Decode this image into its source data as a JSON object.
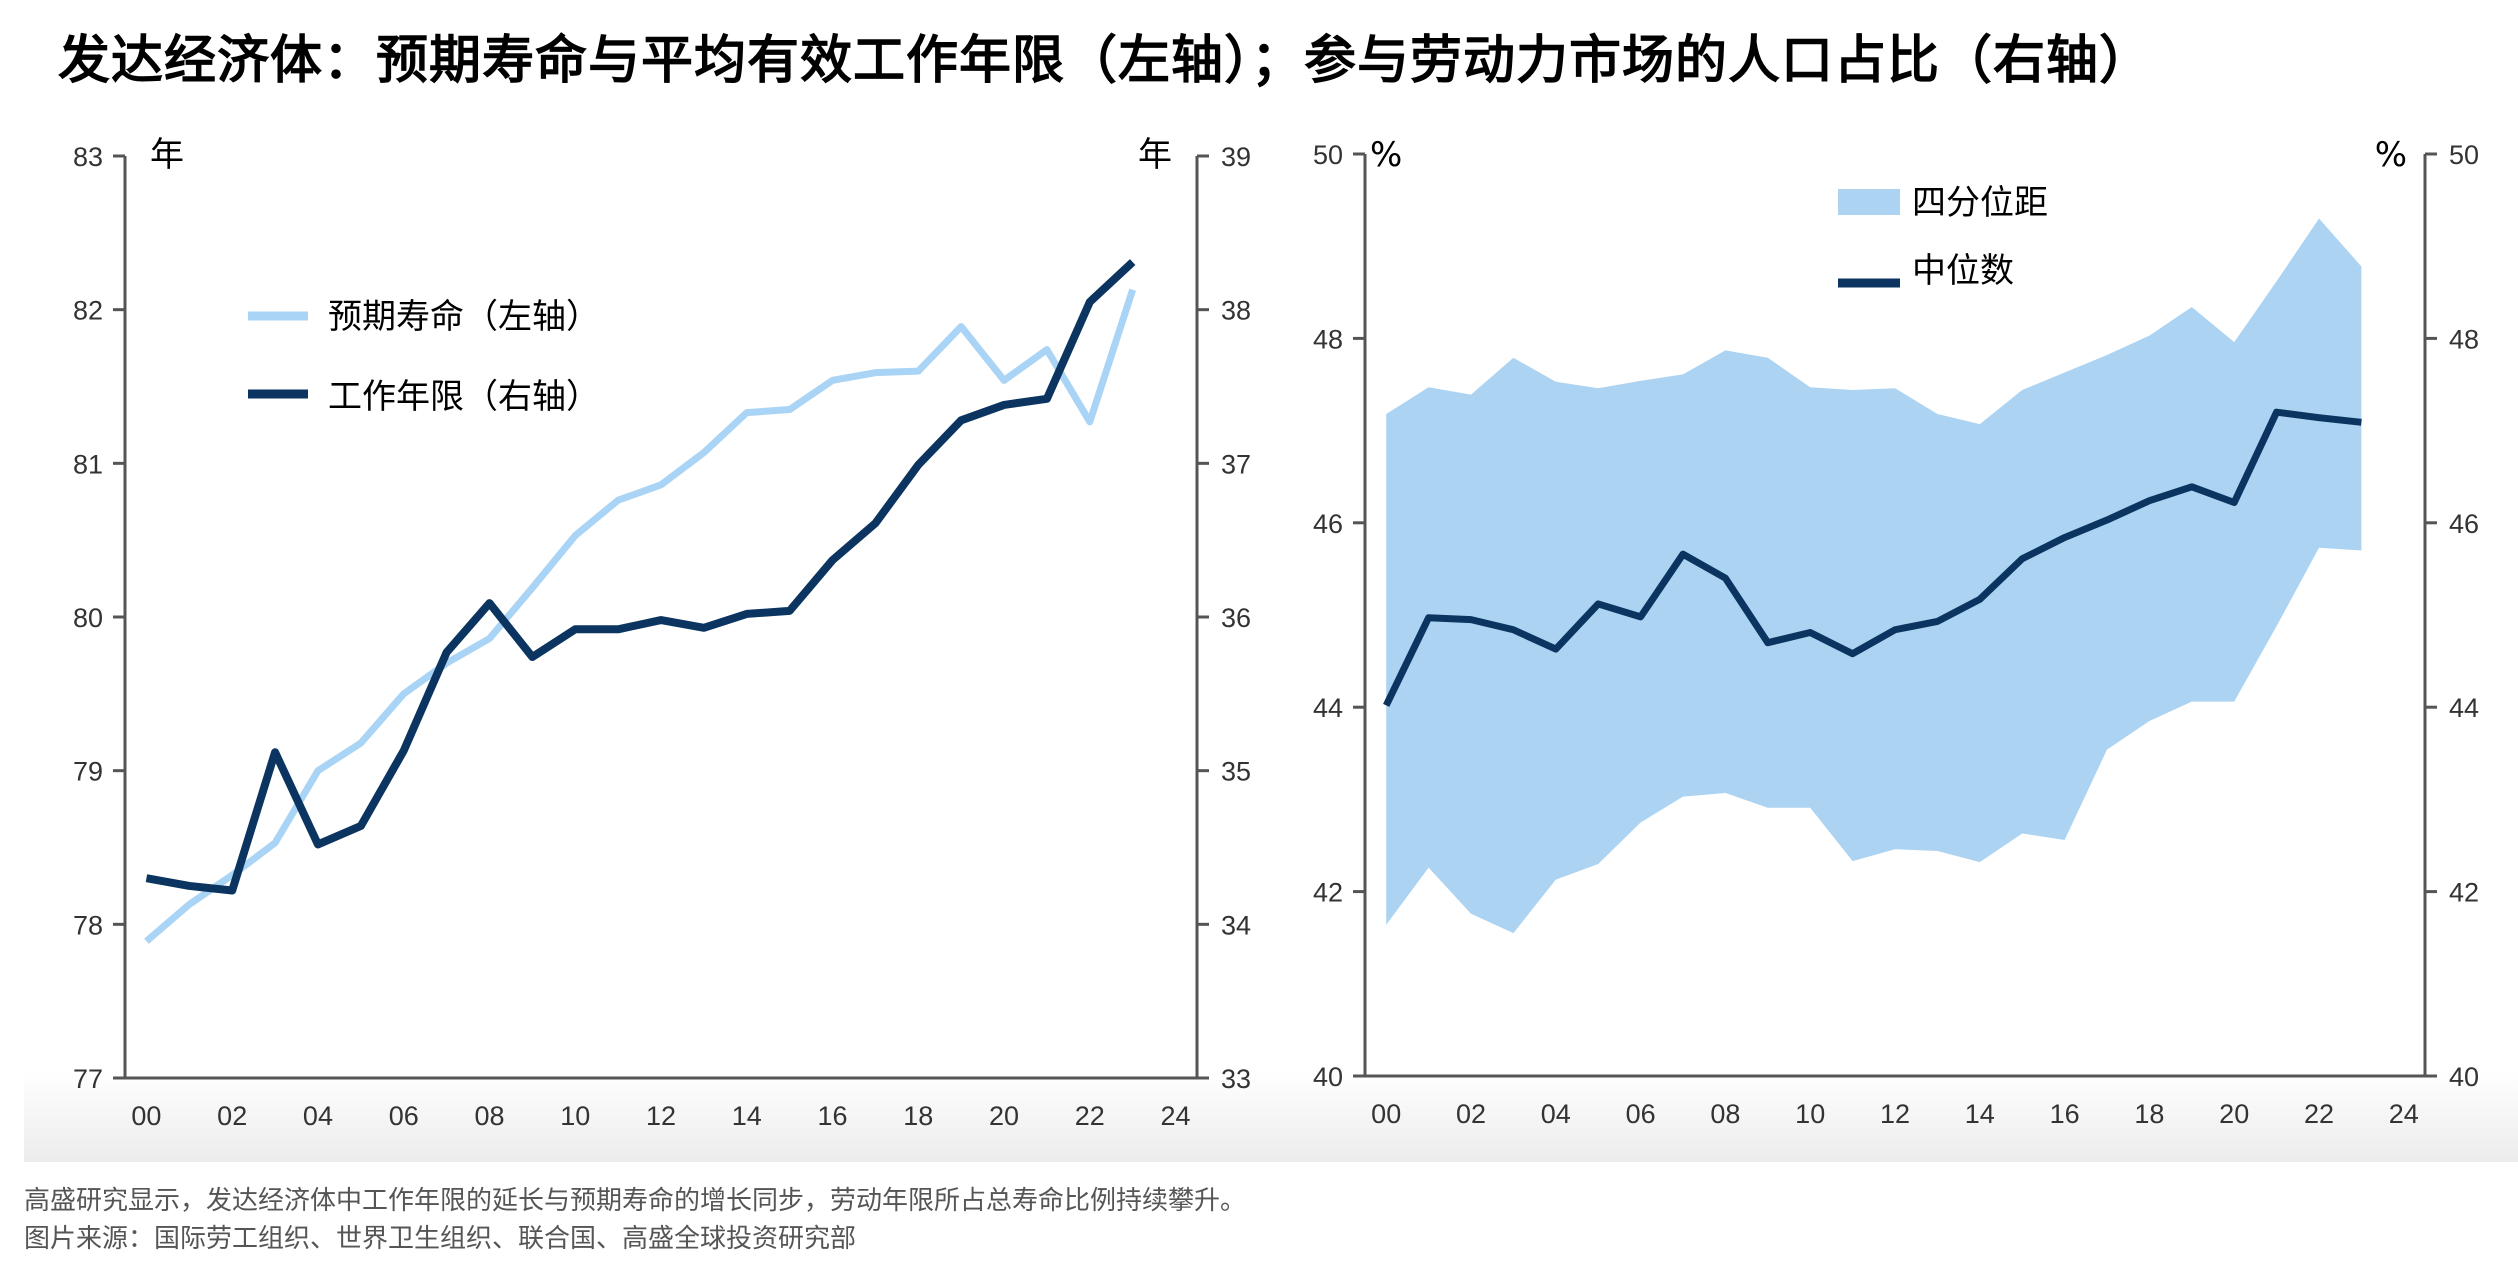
{
  "title": "发达经济体：预期寿命与平均有效工作年限（左轴）；参与劳动力市场的人口占比（右轴）",
  "footer": {
    "note": "高盛研究显示，发达经济体中工作年限的延长与预期寿命的增长同步，劳动年限所占总寿命比例持续攀升。",
    "source": "图片来源：国际劳工组织、世界卫生组织、联合国、高盛全球投资研究部"
  },
  "colors": {
    "light": "#a9d4f5",
    "dark": "#0b3560",
    "band": "#acd3f2",
    "axis": "#555555"
  },
  "chart_data": [
    {
      "type": "line",
      "title": "",
      "left_unit": "年",
      "right_unit": "年",
      "x": [
        0,
        1,
        2,
        3,
        4,
        5,
        6,
        7,
        8,
        9,
        10,
        11,
        12,
        13,
        14,
        15,
        16,
        17,
        18,
        19,
        20,
        21,
        22,
        23
      ],
      "xticks": [
        "00",
        "02",
        "04",
        "06",
        "08",
        "10",
        "12",
        "14",
        "16",
        "18",
        "20",
        "22",
        "24"
      ],
      "xlim": [
        0,
        24
      ],
      "ylim_left": [
        77,
        83
      ],
      "yticks_left": [
        "77",
        "78",
        "79",
        "80",
        "81",
        "82",
        "83"
      ],
      "ylim_right": [
        33,
        39
      ],
      "yticks_right": [
        "33",
        "34",
        "35",
        "36",
        "37",
        "38",
        "39"
      ],
      "legend": "upper-left",
      "series": [
        {
          "name": "预期寿命（左轴）",
          "axis": "left",
          "color": "#a9d4f5",
          "values": [
            77.89,
            78.13,
            78.32,
            78.53,
            79.0,
            79.18,
            79.5,
            79.7,
            79.86,
            80.19,
            80.53,
            80.76,
            80.86,
            81.07,
            81.33,
            81.35,
            81.54,
            81.59,
            81.6,
            81.89,
            81.54,
            81.74,
            81.27,
            82.13
          ]
        },
        {
          "name": "工作年限（右轴）",
          "axis": "right",
          "color": "#0b3560",
          "values": [
            34.3,
            34.25,
            34.22,
            35.12,
            34.52,
            34.64,
            35.13,
            35.77,
            36.09,
            35.74,
            35.92,
            35.92,
            35.98,
            35.93,
            36.02,
            36.04,
            36.37,
            36.61,
            36.99,
            37.28,
            37.38,
            37.42,
            38.05,
            38.31
          ]
        }
      ]
    },
    {
      "type": "area",
      "title": "",
      "left_unit": "%",
      "right_unit": "%",
      "x": [
        0,
        1,
        2,
        3,
        4,
        5,
        6,
        7,
        8,
        9,
        10,
        11,
        12,
        13,
        14,
        15,
        16,
        17,
        18,
        19,
        20,
        21,
        22,
        23
      ],
      "xticks": [
        "00",
        "02",
        "04",
        "06",
        "08",
        "10",
        "12",
        "14",
        "16",
        "18",
        "20",
        "22",
        "24"
      ],
      "xlim": [
        0,
        24
      ],
      "ylim": [
        40,
        50
      ],
      "yticks": [
        "40",
        "42",
        "44",
        "46",
        "48",
        "50"
      ],
      "legend": "top-center",
      "series": [
        {
          "name": "四分位距",
          "kind": "band",
          "color": "#acd3f2",
          "upper": [
            47.18,
            47.47,
            47.39,
            47.79,
            47.53,
            47.46,
            47.54,
            47.61,
            47.87,
            47.79,
            47.47,
            47.44,
            47.46,
            47.18,
            47.07,
            47.44,
            47.63,
            47.82,
            48.03,
            48.34,
            47.96,
            48.62,
            49.3,
            48.78
          ],
          "lower": [
            41.64,
            42.26,
            41.76,
            41.55,
            42.13,
            42.3,
            42.75,
            43.03,
            43.07,
            42.91,
            42.91,
            42.33,
            42.46,
            42.44,
            42.32,
            42.63,
            42.56,
            43.54,
            43.85,
            44.06,
            44.06,
            44.88,
            45.73,
            45.7
          ]
        },
        {
          "name": "中位数",
          "kind": "line",
          "color": "#0b3560",
          "values": [
            44.02,
            44.97,
            44.95,
            44.84,
            44.63,
            45.12,
            44.98,
            45.66,
            45.4,
            44.7,
            44.81,
            44.58,
            44.84,
            44.93,
            45.17,
            45.61,
            45.84,
            46.03,
            46.24,
            46.39,
            46.22,
            47.2,
            47.14,
            47.09
          ]
        }
      ]
    }
  ]
}
